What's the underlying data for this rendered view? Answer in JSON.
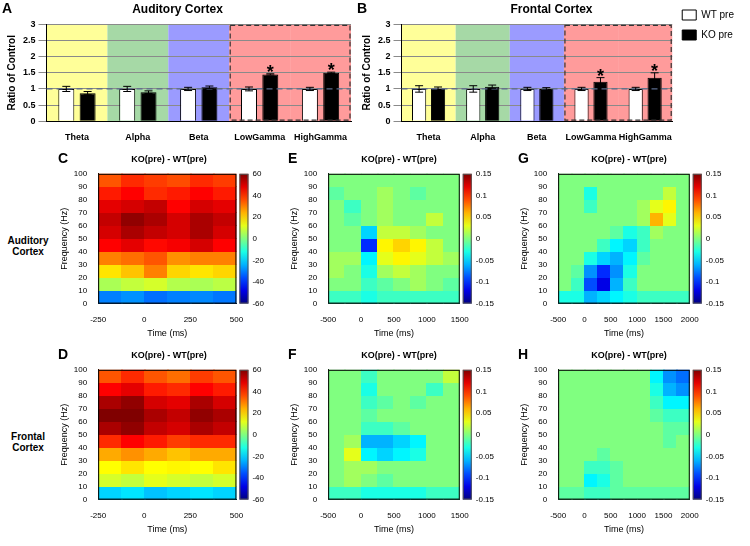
{
  "row_labels": [
    "Auditory Cortex",
    "Frontal Cortex"
  ],
  "chart_data": [
    {
      "panel": "A",
      "type": "bar",
      "title": "Auditory Cortex",
      "ylabel": "Ratio of Control",
      "categories": [
        "Theta",
        "Alpha",
        "Beta",
        "LowGamma",
        "HighGamma"
      ],
      "series": [
        {
          "name": "WT pre",
          "color": "#ffffff",
          "values": [
            1,
            1,
            1,
            1,
            1
          ],
          "errors": [
            0.08,
            0.08,
            0.05,
            0.06,
            0.05
          ]
        },
        {
          "name": "KO pre",
          "color": "#000000",
          "values": [
            0.87,
            0.9,
            1.05,
            1.45,
            1.5
          ],
          "errors": [
            0.05,
            0.04,
            0.04,
            0.02,
            0.02
          ]
        }
      ],
      "ylim": [
        0,
        3
      ],
      "yticks": [
        0,
        0.5,
        1,
        1.5,
        2,
        2.5,
        3
      ],
      "grid": true,
      "hline": 1,
      "annotations": [
        {
          "text": "*",
          "category": "LowGamma",
          "series": "KO pre"
        },
        {
          "text": "*",
          "category": "HighGamma",
          "series": "KO pre"
        }
      ]
    },
    {
      "panel": "B",
      "type": "bar",
      "title": "Frontal Cortex",
      "ylabel": "Ratio of Control",
      "categories": [
        "Theta",
        "Alpha",
        "Beta",
        "LowGamma",
        "HighGamma"
      ],
      "series": [
        {
          "name": "WT pre",
          "color": "#ffffff",
          "values": [
            1,
            1,
            1,
            1,
            1
          ],
          "errors": [
            0.1,
            0.1,
            0.05,
            0.05,
            0.05
          ]
        },
        {
          "name": "KO pre",
          "color": "#000000",
          "values": [
            1,
            1.07,
            1,
            1.22,
            1.35
          ],
          "errors": [
            0.06,
            0.05,
            0.04,
            0.13,
            0.15
          ]
        }
      ],
      "ylim": [
        0,
        3
      ],
      "yticks": [
        0,
        0.5,
        1,
        1.5,
        2,
        2.5,
        3
      ],
      "grid": true,
      "hline": 1,
      "legend": "right",
      "annotations": [
        {
          "text": "*",
          "category": "LowGamma",
          "series": "KO pre"
        },
        {
          "text": "*",
          "category": "HighGamma",
          "series": "KO pre"
        }
      ]
    },
    {
      "panel": "C",
      "type": "heatmap",
      "title": "KO(pre) - WT(pre)",
      "xlabel": "Time (ms)",
      "ylabel": "Frequency (Hz)",
      "x_bins": [
        -250,
        -125,
        0,
        125,
        250,
        375,
        500
      ],
      "y_bins": [
        0,
        10,
        20,
        30,
        40,
        50,
        60,
        70,
        80,
        90,
        100
      ],
      "cells": [
        [
          -30,
          -28,
          -32,
          -30,
          -29,
          -31
        ],
        [
          5,
          8,
          10,
          6,
          5,
          7
        ],
        [
          18,
          22,
          30,
          20,
          18,
          20
        ],
        [
          30,
          32,
          35,
          28,
          30,
          30
        ],
        [
          45,
          48,
          44,
          46,
          50,
          45
        ],
        [
          50,
          55,
          52,
          50,
          55,
          50
        ],
        [
          52,
          58,
          55,
          50,
          55,
          52
        ],
        [
          48,
          50,
          52,
          45,
          50,
          48
        ],
        [
          42,
          45,
          40,
          42,
          45,
          42
        ],
        [
          35,
          40,
          38,
          36,
          40,
          38
        ]
      ],
      "xlim": [
        -250,
        500
      ],
      "xticks": [
        -250,
        0,
        250,
        500
      ],
      "ylim": [
        0,
        100
      ],
      "yticks": [
        0,
        10,
        20,
        30,
        40,
        50,
        60,
        70,
        80,
        90,
        100
      ],
      "colorbar": {
        "range": [
          -60,
          60
        ],
        "ticks": [
          -60,
          -40,
          -20,
          0,
          20,
          40,
          60
        ]
      }
    },
    {
      "panel": "D",
      "type": "heatmap",
      "title": "KO(pre) - WT(pre)",
      "xlabel": "Time (ms)",
      "ylabel": "Frequency (Hz)",
      "x_bins": [
        -250,
        -125,
        0,
        125,
        250,
        375,
        500
      ],
      "y_bins": [
        0,
        10,
        20,
        30,
        40,
        50,
        60,
        70,
        80,
        90,
        100
      ],
      "cells": [
        [
          -20,
          -18,
          -22,
          -20,
          -18,
          -20
        ],
        [
          10,
          8,
          12,
          10,
          8,
          10
        ],
        [
          15,
          18,
          15,
          16,
          15,
          18
        ],
        [
          25,
          28,
          25,
          22,
          25,
          25
        ],
        [
          40,
          45,
          42,
          38,
          40,
          40
        ],
        [
          55,
          58,
          52,
          50,
          55,
          52
        ],
        [
          60,
          62,
          55,
          52,
          58,
          55
        ],
        [
          55,
          58,
          50,
          48,
          55,
          50
        ],
        [
          45,
          48,
          42,
          40,
          45,
          42
        ],
        [
          35,
          40,
          35,
          32,
          38,
          35
        ]
      ],
      "xlim": [
        -250,
        500
      ],
      "xticks": [
        -250,
        0,
        250,
        500
      ],
      "ylim": [
        0,
        100
      ],
      "yticks": [
        0,
        10,
        20,
        30,
        40,
        50,
        60,
        70,
        80,
        90,
        100
      ],
      "colorbar": {
        "range": [
          -60,
          60
        ],
        "ticks": [
          -60,
          -40,
          -20,
          0,
          20,
          40,
          60
        ]
      }
    },
    {
      "panel": "E",
      "type": "heatmap",
      "title": "KO(pre) - WT(pre)",
      "xlabel": "Time (ms)",
      "ylabel": "Frequency (Hz)",
      "x_bins": [
        -500,
        -250,
        0,
        250,
        500,
        750,
        1000,
        1250,
        1500
      ],
      "y_bins": [
        0,
        10,
        20,
        30,
        40,
        50,
        60,
        70,
        80,
        90,
        100
      ],
      "cells": [
        [
          -0.02,
          -0.02,
          -0.03,
          -0.02,
          -0.02,
          -0.02,
          -0.02,
          -0.02
        ],
        [
          0,
          0,
          -0.02,
          -0.01,
          0,
          0.01,
          0,
          -0.01
        ],
        [
          0.01,
          0,
          -0.03,
          0.01,
          0.02,
          0.01,
          0,
          0
        ],
        [
          0.01,
          0.01,
          -0.04,
          0.03,
          0.04,
          0.03,
          0.02,
          0.01
        ],
        [
          0,
          0,
          -0.1,
          0.04,
          0.05,
          0.04,
          0.02,
          0
        ],
        [
          0,
          0,
          -0.05,
          0.02,
          0.02,
          0.01,
          0,
          0
        ],
        [
          0,
          -0.01,
          0,
          0.01,
          0,
          0,
          0.02,
          0
        ],
        [
          0,
          -0.02,
          0,
          0.01,
          0,
          0,
          0,
          0
        ],
        [
          -0.01,
          0,
          0,
          0.01,
          0,
          -0.01,
          0,
          0
        ],
        [
          0,
          0,
          0,
          0,
          0,
          0,
          0,
          0
        ]
      ],
      "xlim": [
        -500,
        1500
      ],
      "xticks": [
        -500,
        0,
        500,
        1000,
        1500
      ],
      "ylim": [
        0,
        100
      ],
      "yticks": [
        0,
        10,
        20,
        30,
        40,
        50,
        60,
        70,
        80,
        90,
        100
      ],
      "colorbar": {
        "range": [
          -0.15,
          0.15
        ],
        "ticks": [
          -0.15,
          -0.1,
          -0.05,
          0,
          0.05,
          0.1,
          0.15
        ]
      }
    },
    {
      "panel": "F",
      "type": "heatmap",
      "title": "KO(pre) - WT(pre)",
      "xlabel": "Time (ms)",
      "ylabel": "Frequency (Hz)",
      "x_bins": [
        -500,
        -250,
        0,
        250,
        500,
        750,
        1000,
        1250,
        1500
      ],
      "y_bins": [
        0,
        10,
        20,
        30,
        40,
        50,
        60,
        70,
        80,
        90,
        100
      ],
      "cells": [
        [
          -0.02,
          -0.02,
          -0.03,
          -0.03,
          -0.03,
          -0.03,
          -0.02,
          -0.02
        ],
        [
          0,
          0.01,
          0,
          -0.01,
          0,
          0,
          0,
          0
        ],
        [
          0,
          0.01,
          0.01,
          0,
          0,
          0,
          0,
          0
        ],
        [
          0,
          0.03,
          -0.04,
          -0.05,
          -0.04,
          -0.03,
          0,
          0
        ],
        [
          0,
          0.01,
          -0.06,
          -0.06,
          -0.05,
          -0.04,
          0,
          0
        ],
        [
          0,
          0,
          -0.02,
          -0.02,
          -0.01,
          0,
          0,
          0
        ],
        [
          0,
          0,
          -0.01,
          0,
          0,
          0,
          0,
          0
        ],
        [
          0,
          0,
          -0.02,
          -0.01,
          0,
          -0.01,
          0,
          0
        ],
        [
          0,
          0,
          -0.03,
          0,
          0,
          0,
          -0.02,
          0
        ],
        [
          0,
          0,
          -0.02,
          0,
          0,
          0,
          0,
          0.02
        ]
      ],
      "xlim": [
        -500,
        1500
      ],
      "xticks": [
        -500,
        0,
        500,
        1000,
        1500
      ],
      "ylim": [
        0,
        100
      ],
      "yticks": [
        0,
        10,
        20,
        30,
        40,
        50,
        60,
        70,
        80,
        90,
        100
      ],
      "colorbar": {
        "range": [
          -0.15,
          0.15
        ],
        "ticks": [
          -0.15,
          -0.1,
          -0.05,
          0,
          0.05,
          0.1,
          0.15
        ]
      }
    },
    {
      "panel": "G",
      "type": "heatmap",
      "title": "KO(pre) - WT(pre)",
      "xlabel": "Time (ms)",
      "ylabel": "Frequency (Hz)",
      "x_bins": [
        -500,
        -250,
        0,
        250,
        500,
        750,
        1000,
        1250,
        1500,
        1750,
        2000
      ],
      "y_bins": [
        0,
        10,
        20,
        30,
        40,
        50,
        60,
        70,
        80,
        90,
        100
      ],
      "cells": [
        [
          -0.03,
          -0.03,
          -0.06,
          -0.05,
          -0.04,
          -0.03,
          -0.02,
          -0.02,
          -0.02,
          -0.02
        ],
        [
          0,
          -0.02,
          -0.09,
          -0.12,
          -0.06,
          -0.02,
          0,
          0,
          0,
          0
        ],
        [
          0,
          -0.01,
          -0.07,
          -0.1,
          -0.07,
          -0.03,
          0,
          0,
          0,
          0
        ],
        [
          0,
          0,
          -0.03,
          -0.05,
          -0.06,
          -0.04,
          -0.01,
          0,
          0,
          0
        ],
        [
          0,
          0,
          0,
          -0.02,
          -0.04,
          -0.05,
          -0.02,
          0,
          0,
          0
        ],
        [
          0,
          0,
          0,
          0,
          -0.01,
          -0.03,
          -0.02,
          0.01,
          0,
          0
        ],
        [
          0,
          0,
          0,
          0,
          0,
          0,
          0.01,
          0.06,
          0.03,
          0
        ],
        [
          0,
          0,
          -0.02,
          0,
          0,
          0,
          0.01,
          0.03,
          0.04,
          0
        ],
        [
          0,
          0,
          -0.03,
          0,
          0,
          0,
          0,
          0,
          0.02,
          0
        ],
        [
          0,
          0,
          0,
          0,
          0,
          0,
          0,
          0,
          0,
          0
        ]
      ],
      "xlim": [
        -500,
        2000
      ],
      "xticks": [
        -500,
        0,
        500,
        1000,
        1500,
        2000
      ],
      "ylim": [
        0,
        100
      ],
      "yticks": [
        0,
        10,
        20,
        30,
        40,
        50,
        60,
        70,
        80,
        90,
        100
      ],
      "colorbar": {
        "range": [
          -0.15,
          0.15
        ],
        "ticks": [
          -0.15,
          -0.1,
          -0.05,
          0,
          0.05,
          0.1,
          0.15
        ]
      }
    },
    {
      "panel": "H",
      "type": "heatmap",
      "title": "KO(pre) - WT(pre)",
      "xlabel": "Time (ms)",
      "ylabel": "Frequency (Hz)",
      "x_bins": [
        -500,
        -250,
        0,
        250,
        500,
        750,
        1000,
        1250,
        1500,
        1750,
        2000
      ],
      "y_bins": [
        0,
        10,
        20,
        30,
        40,
        50,
        60,
        70,
        80,
        90,
        100
      ],
      "cells": [
        [
          -0.01,
          -0.01,
          -0.02,
          -0.02,
          -0.01,
          -0.01,
          -0.01,
          -0.01,
          -0.01,
          -0.01
        ],
        [
          0,
          0,
          -0.04,
          -0.03,
          -0.01,
          0,
          0,
          0,
          0,
          0
        ],
        [
          0,
          0,
          -0.02,
          -0.02,
          -0.01,
          0,
          0,
          0,
          0,
          0
        ],
        [
          0,
          0,
          0,
          -0.01,
          0,
          0,
          0,
          0,
          0,
          0
        ],
        [
          0,
          0,
          0,
          0,
          0,
          0,
          0,
          0,
          -0.01,
          0
        ],
        [
          0,
          0,
          0,
          0,
          0,
          0,
          0,
          0,
          -0.01,
          -0.01
        ],
        [
          0,
          0,
          0,
          0,
          0,
          0,
          0,
          -0.01,
          -0.02,
          -0.02
        ],
        [
          0,
          0,
          0,
          0,
          0,
          0,
          0,
          -0.02,
          -0.04,
          -0.04
        ],
        [
          0,
          0,
          0,
          0,
          0,
          0,
          0,
          -0.03,
          -0.06,
          -0.07
        ],
        [
          0,
          0,
          0,
          0,
          0,
          0,
          0,
          -0.04,
          -0.07,
          -0.08
        ]
      ],
      "xlim": [
        -500,
        2000
      ],
      "xticks": [
        -500,
        0,
        500,
        1000,
        1500,
        2000
      ],
      "ylim": [
        0,
        100
      ],
      "yticks": [
        0,
        10,
        20,
        30,
        40,
        50,
        60,
        70,
        80,
        90,
        100
      ],
      "colorbar": {
        "range": [
          -0.15,
          0.15
        ],
        "ticks": [
          -0.15,
          -0.1,
          -0.05,
          0,
          0.05,
          0.1,
          0.15
        ]
      }
    }
  ]
}
